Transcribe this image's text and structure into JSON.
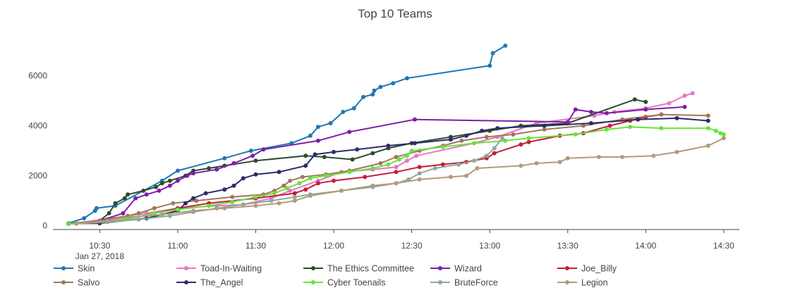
{
  "chart_data": {
    "type": "line",
    "title": "Top 10 Teams",
    "xlabel": "",
    "ylabel": "",
    "x_unit": "time of day (hours, 24h)",
    "xlim": [
      10.2,
      14.6
    ],
    "ylim": [
      -150,
      7900
    ],
    "x_ticks": [
      {
        "value": 10.5,
        "label": "10:30"
      },
      {
        "value": 11.0,
        "label": "11:00"
      },
      {
        "value": 11.5,
        "label": "11:30"
      },
      {
        "value": 12.0,
        "label": "12:00"
      },
      {
        "value": 12.5,
        "label": "12:30"
      },
      {
        "value": 13.0,
        "label": "13:00"
      },
      {
        "value": 13.5,
        "label": "13:30"
      },
      {
        "value": 14.0,
        "label": "14:00"
      },
      {
        "value": 14.5,
        "label": "14:30"
      }
    ],
    "date_label": "Jan 27, 2018",
    "y_ticks": [
      {
        "value": 0,
        "label": "0"
      },
      {
        "value": 2000,
        "label": "2000"
      },
      {
        "value": 4000,
        "label": "4000"
      },
      {
        "value": 6000,
        "label": "6000"
      }
    ],
    "grid": false,
    "legend_position": "bottom",
    "series": [
      {
        "name": "Skin",
        "color": "#1f77b4",
        "points": [
          [
            10.3,
            100
          ],
          [
            10.4,
            300
          ],
          [
            10.47,
            600
          ],
          [
            10.48,
            700
          ],
          [
            10.6,
            800
          ],
          [
            10.9,
            1800
          ],
          [
            11.0,
            2200
          ],
          [
            11.3,
            2700
          ],
          [
            11.47,
            3000
          ],
          [
            11.73,
            3300
          ],
          [
            11.85,
            3600
          ],
          [
            11.9,
            3950
          ],
          [
            11.98,
            4100
          ],
          [
            12.06,
            4550
          ],
          [
            12.13,
            4700
          ],
          [
            12.19,
            5150
          ],
          [
            12.25,
            5250
          ],
          [
            12.26,
            5400
          ],
          [
            12.3,
            5550
          ],
          [
            12.38,
            5700
          ],
          [
            12.47,
            5900
          ],
          [
            13.0,
            6400
          ],
          [
            13.02,
            6900
          ],
          [
            13.1,
            7200
          ]
        ]
      },
      {
        "name": "Toad-In-Waiting",
        "color": "#e377c2",
        "points": [
          [
            10.35,
            100
          ],
          [
            10.8,
            500
          ],
          [
            11.0,
            700
          ],
          [
            11.25,
            800
          ],
          [
            11.42,
            850
          ],
          [
            11.6,
            1100
          ],
          [
            11.72,
            1400
          ],
          [
            11.9,
            1800
          ],
          [
            12.05,
            2150
          ],
          [
            12.25,
            2250
          ],
          [
            12.4,
            2350
          ],
          [
            12.47,
            2600
          ],
          [
            12.53,
            2800
          ],
          [
            12.9,
            3300
          ],
          [
            13.05,
            3550
          ],
          [
            13.3,
            4100
          ],
          [
            13.67,
            4400
          ],
          [
            13.8,
            4550
          ],
          [
            14.0,
            4700
          ],
          [
            14.15,
            4900
          ],
          [
            14.25,
            5200
          ],
          [
            14.3,
            5300
          ]
        ]
      },
      {
        "name": "The Ethics Committee",
        "color": "#2c4c2c",
        "points": [
          [
            10.3,
            80
          ],
          [
            10.5,
            200
          ],
          [
            10.56,
            500
          ],
          [
            10.6,
            900
          ],
          [
            10.66,
            1100
          ],
          [
            10.68,
            1250
          ],
          [
            10.78,
            1400
          ],
          [
            10.86,
            1550
          ],
          [
            10.9,
            1700
          ],
          [
            10.95,
            1800
          ],
          [
            11.05,
            2000
          ],
          [
            11.1,
            2200
          ],
          [
            11.2,
            2300
          ],
          [
            11.3,
            2400
          ],
          [
            11.5,
            2600
          ],
          [
            11.82,
            2800
          ],
          [
            11.94,
            2750
          ],
          [
            12.12,
            2650
          ],
          [
            12.25,
            2900
          ],
          [
            12.35,
            3100
          ],
          [
            12.5,
            3300
          ],
          [
            12.75,
            3550
          ],
          [
            13.0,
            3800
          ],
          [
            13.2,
            4000
          ],
          [
            13.5,
            4100
          ],
          [
            13.93,
            5050
          ],
          [
            14.0,
            4950
          ]
        ]
      },
      {
        "name": "Wizard",
        "color": "#7f1cad",
        "points": [
          [
            10.3,
            80
          ],
          [
            10.5,
            200
          ],
          [
            10.65,
            500
          ],
          [
            10.73,
            1100
          ],
          [
            10.8,
            1250
          ],
          [
            10.88,
            1400
          ],
          [
            10.95,
            1600
          ],
          [
            11.0,
            1800
          ],
          [
            11.06,
            2000
          ],
          [
            11.1,
            2100
          ],
          [
            11.25,
            2250
          ],
          [
            11.36,
            2500
          ],
          [
            11.48,
            2800
          ],
          [
            11.55,
            3050
          ],
          [
            11.9,
            3400
          ],
          [
            12.1,
            3750
          ],
          [
            12.52,
            4250
          ],
          [
            13.5,
            4150
          ],
          [
            13.55,
            4650
          ],
          [
            13.65,
            4550
          ],
          [
            13.75,
            4500
          ],
          [
            14.0,
            4650
          ],
          [
            14.25,
            4750
          ]
        ]
      },
      {
        "name": "Joe_Billy",
        "color": "#c41e3a",
        "points": [
          [
            10.3,
            80
          ],
          [
            10.55,
            150
          ],
          [
            10.7,
            300
          ],
          [
            11.0,
            700
          ],
          [
            11.2,
            900
          ],
          [
            11.5,
            1100
          ],
          [
            11.75,
            1300
          ],
          [
            11.82,
            1450
          ],
          [
            11.9,
            1700
          ],
          [
            12.0,
            1800
          ],
          [
            12.2,
            1950
          ],
          [
            12.4,
            2150
          ],
          [
            12.55,
            2350
          ],
          [
            12.7,
            2450
          ],
          [
            12.85,
            2550
          ],
          [
            12.98,
            2700
          ],
          [
            13.03,
            2900
          ],
          [
            13.2,
            3250
          ],
          [
            13.25,
            3350
          ],
          [
            13.45,
            3600
          ],
          [
            13.6,
            3700
          ],
          [
            13.77,
            4000
          ],
          [
            13.9,
            4200
          ],
          [
            14.0,
            4350
          ],
          [
            14.1,
            4450
          ]
        ]
      },
      {
        "name": "Salvo",
        "color": "#a0785a",
        "points": [
          [
            10.3,
            80
          ],
          [
            10.5,
            200
          ],
          [
            10.68,
            400
          ],
          [
            10.75,
            500
          ],
          [
            10.85,
            700
          ],
          [
            10.97,
            900
          ],
          [
            11.12,
            1000
          ],
          [
            11.35,
            1150
          ],
          [
            11.55,
            1250
          ],
          [
            11.62,
            1400
          ],
          [
            11.68,
            1600
          ],
          [
            11.72,
            1800
          ],
          [
            11.8,
            1950
          ],
          [
            11.95,
            2050
          ],
          [
            12.1,
            2200
          ],
          [
            12.3,
            2500
          ],
          [
            12.4,
            2750
          ],
          [
            12.55,
            3000
          ],
          [
            12.7,
            3200
          ],
          [
            12.82,
            3400
          ],
          [
            12.98,
            3550
          ],
          [
            13.15,
            3650
          ],
          [
            13.35,
            3850
          ],
          [
            13.6,
            4000
          ],
          [
            13.85,
            4250
          ],
          [
            14.1,
            4450
          ],
          [
            14.4,
            4400
          ]
        ]
      },
      {
        "name": "The_Angel",
        "color": "#2c2c6b",
        "points": [
          [
            10.3,
            80
          ],
          [
            10.5,
            100
          ],
          [
            10.8,
            300
          ],
          [
            11.0,
            600
          ],
          [
            11.05,
            900
          ],
          [
            11.1,
            1100
          ],
          [
            11.18,
            1300
          ],
          [
            11.3,
            1450
          ],
          [
            11.36,
            1600
          ],
          [
            11.42,
            1900
          ],
          [
            11.5,
            2050
          ],
          [
            11.65,
            2150
          ],
          [
            11.82,
            2400
          ],
          [
            11.88,
            2850
          ],
          [
            12.0,
            2950
          ],
          [
            12.15,
            3050
          ],
          [
            12.35,
            3200
          ],
          [
            12.52,
            3300
          ],
          [
            12.75,
            3450
          ],
          [
            12.85,
            3600
          ],
          [
            12.95,
            3800
          ],
          [
            13.05,
            3900
          ],
          [
            13.35,
            4000
          ],
          [
            13.65,
            4100
          ],
          [
            13.95,
            4250
          ],
          [
            14.2,
            4300
          ],
          [
            14.4,
            4200
          ]
        ]
      },
      {
        "name": "Cyber Toenails",
        "color": "#66e43b",
        "points": [
          [
            10.3,
            80
          ],
          [
            10.55,
            150
          ],
          [
            10.7,
            300
          ],
          [
            10.85,
            500
          ],
          [
            11.0,
            650
          ],
          [
            11.2,
            800
          ],
          [
            11.35,
            950
          ],
          [
            11.5,
            1150
          ],
          [
            11.62,
            1300
          ],
          [
            11.7,
            1500
          ],
          [
            11.78,
            1700
          ],
          [
            11.85,
            1900
          ],
          [
            11.95,
            2000
          ],
          [
            12.1,
            2150
          ],
          [
            12.25,
            2300
          ],
          [
            12.35,
            2450
          ],
          [
            12.42,
            2650
          ],
          [
            12.47,
            2800
          ],
          [
            12.5,
            3000
          ],
          [
            12.7,
            3150
          ],
          [
            12.9,
            3300
          ],
          [
            13.1,
            3400
          ],
          [
            13.25,
            3500
          ],
          [
            13.55,
            3650
          ],
          [
            13.75,
            3850
          ],
          [
            13.9,
            3950
          ],
          [
            14.1,
            3900
          ],
          [
            14.4,
            3900
          ],
          [
            14.45,
            3800
          ],
          [
            14.48,
            3700
          ],
          [
            14.5,
            3650
          ]
        ]
      },
      {
        "name": "BruteForce",
        "color": "#8fa89c",
        "points": [
          [
            10.35,
            80
          ],
          [
            10.55,
            150
          ],
          [
            10.75,
            250
          ],
          [
            10.95,
            400
          ],
          [
            11.1,
            550
          ],
          [
            11.25,
            700
          ],
          [
            11.42,
            850
          ],
          [
            11.6,
            1000
          ],
          [
            11.75,
            1150
          ],
          [
            11.85,
            1250
          ],
          [
            12.05,
            1400
          ],
          [
            12.25,
            1550
          ],
          [
            12.4,
            1700
          ],
          [
            12.48,
            1850
          ],
          [
            12.55,
            2100
          ],
          [
            12.65,
            2300
          ],
          [
            12.8,
            2450
          ],
          [
            12.9,
            2600
          ],
          [
            12.98,
            2800
          ],
          [
            13.03,
            3100
          ],
          [
            13.08,
            3500
          ]
        ]
      },
      {
        "name": "Legion",
        "color": "#b29b7c",
        "points": [
          [
            10.35,
            80
          ],
          [
            10.55,
            200
          ],
          [
            10.7,
            350
          ],
          [
            10.9,
            450
          ],
          [
            11.1,
            600
          ],
          [
            11.3,
            700
          ],
          [
            11.5,
            800
          ],
          [
            11.65,
            900
          ],
          [
            11.75,
            1000
          ],
          [
            11.85,
            1200
          ],
          [
            12.05,
            1400
          ],
          [
            12.25,
            1600
          ],
          [
            12.4,
            1700
          ],
          [
            12.55,
            1850
          ],
          [
            12.75,
            1950
          ],
          [
            12.85,
            2000
          ],
          [
            12.92,
            2300
          ],
          [
            13.2,
            2400
          ],
          [
            13.3,
            2500
          ],
          [
            13.45,
            2550
          ],
          [
            13.5,
            2700
          ],
          [
            13.7,
            2750
          ],
          [
            13.85,
            2750
          ],
          [
            14.05,
            2800
          ],
          [
            14.2,
            2950
          ],
          [
            14.4,
            3200
          ],
          [
            14.5,
            3500
          ]
        ]
      }
    ]
  }
}
